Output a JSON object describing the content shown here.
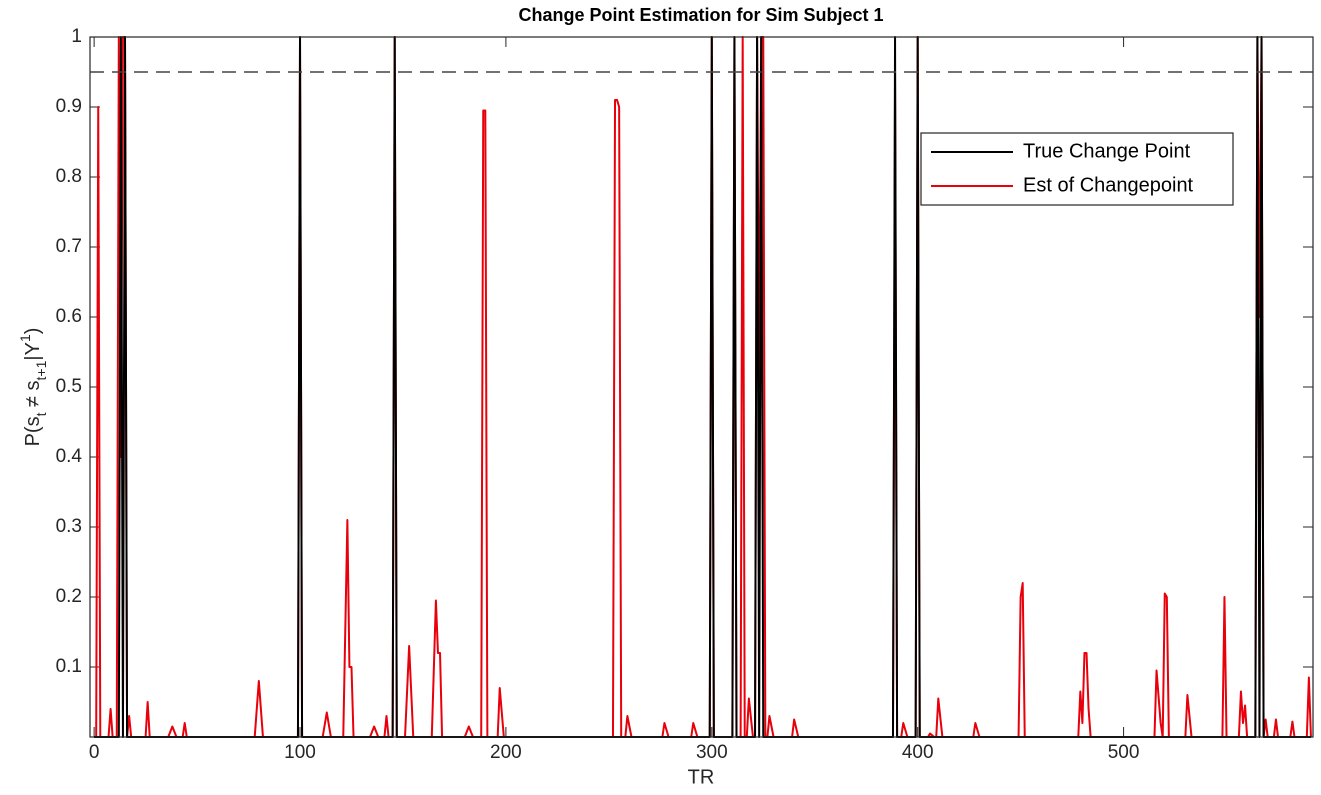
{
  "chart_data": {
    "type": "line",
    "title": "Change Point Estimation for Sim Subject 1",
    "x_label": "TR",
    "y_label": [
      "P(s",
      "t",
      " ≠ s",
      "t+1",
      "|Y",
      "1",
      ")"
    ],
    "y_label_style": [
      "normal",
      "sub",
      "normal",
      "sub",
      "normal",
      "super",
      "normal"
    ],
    "xlim": [
      -2,
      592
    ],
    "ylim": [
      0,
      1
    ],
    "xticks": [
      0,
      100,
      200,
      300,
      400,
      500
    ],
    "yticks": [
      0.1,
      0.2,
      0.3,
      0.4,
      0.5,
      0.6,
      0.7,
      0.8,
      0.9,
      1
    ],
    "grid": false,
    "legend": "upper right",
    "threshold": 0.95,
    "threshold_color": "#444444",
    "series": [
      {
        "name": "True Change Point",
        "color": "#000000",
        "x": [
          0,
          12,
          13,
          14,
          15,
          16,
          99,
          100,
          101,
          145,
          146,
          147,
          299,
          300,
          301,
          310,
          311,
          312,
          321,
          322,
          323,
          324,
          325,
          388,
          389,
          390,
          399,
          400,
          401,
          564,
          565,
          566,
          567,
          568,
          591
        ],
        "values": [
          0,
          0,
          1,
          0,
          1,
          0,
          0,
          1,
          0,
          0,
          1,
          0,
          0,
          1,
          0,
          0,
          1,
          0,
          0,
          1,
          0,
          1,
          0,
          0,
          1,
          0,
          0,
          1,
          0,
          0,
          1,
          0,
          1,
          0,
          0
        ]
      },
      {
        "name": "Est of Changepoint",
        "color": "#e8000b",
        "x": [
          0,
          1,
          2,
          3,
          4,
          7,
          8,
          9,
          11,
          12,
          13,
          14,
          15,
          16,
          17,
          18,
          25,
          26,
          27,
          36,
          38,
          40,
          43,
          44,
          45,
          78,
          80,
          82,
          99,
          100,
          101,
          111,
          113,
          115,
          121,
          123,
          124,
          125,
          126,
          134,
          136,
          138,
          141,
          142,
          143,
          145,
          146,
          147,
          151,
          153,
          155,
          164,
          166,
          167,
          168,
          169,
          180,
          182,
          184,
          188,
          189,
          190,
          191,
          196,
          197,
          199,
          252,
          253,
          254,
          255,
          256,
          258,
          259,
          261,
          276,
          277,
          279,
          290,
          291,
          293,
          299,
          300,
          301,
          310,
          311,
          312,
          314,
          315,
          316,
          317,
          318,
          320,
          321,
          322,
          323,
          324,
          325,
          326,
          327,
          328,
          330,
          339,
          340,
          342,
          388,
          389,
          390,
          392,
          393,
          395,
          399,
          400,
          401,
          405,
          406,
          408,
          409,
          410,
          412,
          427,
          428,
          430,
          449,
          450,
          451,
          452,
          478,
          479,
          480,
          481,
          482,
          483,
          484,
          515,
          516,
          518,
          519,
          520,
          521,
          522,
          530,
          531,
          533,
          548,
          549,
          550,
          556,
          557,
          558,
          559,
          560,
          564,
          565,
          566,
          567,
          568,
          569,
          570,
          573,
          574,
          575,
          581,
          582,
          583,
          589,
          590,
          591
        ],
        "values": [
          0,
          0,
          0.9,
          0,
          0,
          0,
          0.04,
          0,
          0,
          1,
          0.4,
          1,
          1,
          0,
          0.03,
          0,
          0,
          0.05,
          0,
          0,
          0.015,
          0,
          0,
          0.02,
          0,
          0,
          0.08,
          0,
          0,
          1,
          0,
          0,
          0.035,
          0,
          0,
          0.31,
          0.1,
          0.1,
          0,
          0,
          0.015,
          0,
          0,
          0.03,
          0,
          0,
          1,
          0,
          0,
          0.13,
          0,
          0,
          0.195,
          0.12,
          0.12,
          0,
          0,
          0.015,
          0,
          0,
          0.895,
          0.895,
          0,
          0,
          0.07,
          0,
          0,
          0.91,
          0.91,
          0.9,
          0,
          0,
          0.03,
          0,
          0,
          0.02,
          0,
          0,
          0.02,
          0,
          0,
          1,
          0,
          0,
          1,
          0,
          0,
          1,
          0,
          0,
          0.055,
          0,
          0,
          1,
          0.5,
          1,
          1,
          0,
          0,
          0.03,
          0,
          0,
          0.025,
          0,
          0,
          0.93,
          0,
          0,
          0.02,
          0,
          0,
          1,
          0,
          0,
          0.005,
          0,
          0,
          0.055,
          0,
          0,
          0.02,
          0,
          0,
          0.2,
          0.22,
          0,
          0,
          0.065,
          0.02,
          0.12,
          0.12,
          0.04,
          0,
          0,
          0.095,
          0.02,
          0,
          0.205,
          0.2,
          0,
          0,
          0.06,
          0,
          0,
          0.2,
          0,
          0,
          0.065,
          0.02,
          0.045,
          0,
          0,
          1,
          0.6,
          1,
          0,
          0.025,
          0,
          0,
          0.025,
          0,
          0,
          0.022,
          0,
          0,
          0.085,
          0
        ]
      }
    ]
  }
}
